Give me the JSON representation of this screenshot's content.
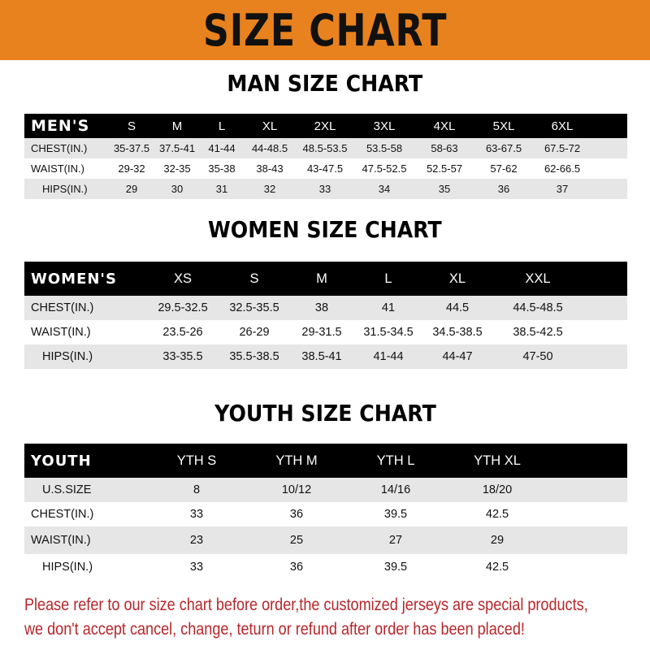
{
  "banner": {
    "title": "SIZE CHART",
    "color": "#e8821e"
  },
  "men": {
    "title": "MAN SIZE CHART",
    "header": "MEN'S",
    "sizes": [
      "S",
      "M",
      "L",
      "XL",
      "2XL",
      "3XL",
      "4XL",
      "5XL",
      "6XL"
    ],
    "rows": [
      {
        "label": "CHEST(IN.)",
        "values": [
          "35-37.5",
          "37.5-41",
          "41-44",
          "44-48.5",
          "48.5-53.5",
          "53.5-58",
          "58-63",
          "63-67.5",
          "67.5-72"
        ]
      },
      {
        "label": "WAIST(IN.)",
        "values": [
          "29-32",
          "32-35",
          "35-38",
          "38-43",
          "43-47.5",
          "47.5-52.5",
          "52.5-57",
          "57-62",
          "62-66.5"
        ]
      },
      {
        "label": "HIPS(IN.)",
        "values": [
          "29",
          "30",
          "31",
          "32",
          "33",
          "34",
          "35",
          "36",
          "37"
        ]
      }
    ]
  },
  "women": {
    "title": "WOMEN SIZE CHART",
    "header": "WOMEN'S",
    "sizes": [
      "XS",
      "S",
      "M",
      "L",
      "XL",
      "XXL"
    ],
    "rows": [
      {
        "label": "CHEST(IN.)",
        "values": [
          "29.5-32.5",
          "32.5-35.5",
          "38",
          "41",
          "44.5",
          "44.5-48.5"
        ]
      },
      {
        "label": "WAIST(IN.)",
        "values": [
          "23.5-26",
          "26-29",
          "29-31.5",
          "31.5-34.5",
          "34.5-38.5",
          "38.5-42.5"
        ]
      },
      {
        "label": "HIPS(IN.)",
        "values": [
          "33-35.5",
          "35.5-38.5",
          "38.5-41",
          "41-44",
          "44-47",
          "47-50"
        ]
      }
    ]
  },
  "youth": {
    "title": "YOUTH SIZE CHART",
    "header": "YOUTH",
    "sizes": [
      "YTH S",
      "YTH M",
      "YTH L",
      "YTH XL"
    ],
    "rows": [
      {
        "label": "U.S.SIZE",
        "values": [
          "8",
          "10/12",
          "14/16",
          "18/20"
        ]
      },
      {
        "label": "CHEST(IN.)",
        "values": [
          "33",
          "36",
          "39.5",
          "42.5"
        ]
      },
      {
        "label": "WAIST(IN.)",
        "values": [
          "23",
          "25",
          "27",
          "29"
        ]
      },
      {
        "label": "HIPS(IN.)",
        "values": [
          "33",
          "36",
          "39.5",
          "42.5"
        ]
      }
    ]
  },
  "notice": {
    "line1": "Please refer to our size chart before order,the customized jerseys are special products,",
    "line2": "we don't accept cancel, change, teturn or refund after order has been placed!",
    "color": "#b8262a"
  }
}
